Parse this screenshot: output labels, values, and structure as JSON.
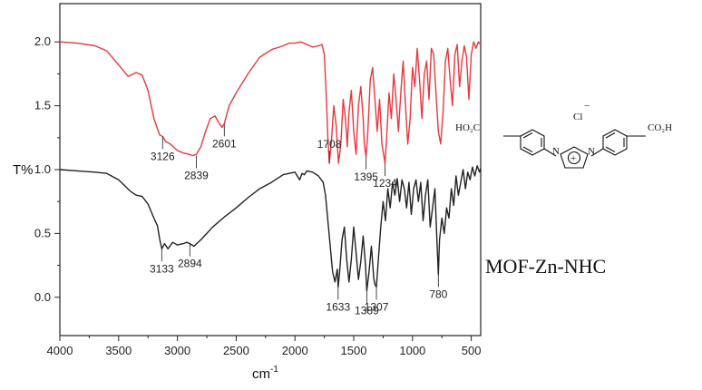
{
  "chart_data": {
    "type": "line",
    "title": "",
    "xlabel": "cm",
    "xlabel_sup": "-1",
    "ylabel": "T%",
    "xlim": [
      4000,
      420
    ],
    "ylim": [
      -0.3,
      2.3
    ],
    "x_ticks": [
      4000,
      3500,
      3000,
      2500,
      2000,
      1500,
      1000,
      500
    ],
    "y_ticks": [
      0.0,
      0.5,
      1.0,
      1.5,
      2.0
    ],
    "y_tick_labels": [
      "0.0",
      "0.5",
      "1.0",
      "1.5",
      "2.0"
    ],
    "grid": false,
    "series": [
      {
        "color": "#e8383d",
        "x": [
          4000,
          3850,
          3700,
          3600,
          3500,
          3420,
          3350,
          3300,
          3250,
          3200,
          3170,
          3150,
          3126,
          3100,
          3060,
          3000,
          2950,
          2900,
          2870,
          2839,
          2800,
          2760,
          2720,
          2680,
          2650,
          2620,
          2601,
          2560,
          2500,
          2400,
          2300,
          2200,
          2100,
          2050,
          2000,
          1950,
          1900,
          1850,
          1800,
          1770,
          1750,
          1735,
          1720,
          1708,
          1690,
          1670,
          1650,
          1630,
          1610,
          1590,
          1570,
          1555,
          1540,
          1520,
          1500,
          1480,
          1460,
          1440,
          1420,
          1410,
          1395,
          1380,
          1360,
          1340,
          1320,
          1300,
          1280,
          1260,
          1234,
          1220,
          1200,
          1180,
          1160,
          1140,
          1120,
          1100,
          1080,
          1060,
          1040,
          1020,
          1000,
          980,
          960,
          940,
          920,
          900,
          880,
          860,
          840,
          820,
          800,
          780,
          760,
          740,
          720,
          700,
          680,
          660,
          640,
          620,
          600,
          580,
          560,
          540,
          520,
          500,
          480,
          460,
          440,
          420
        ],
        "y": [
          2.0,
          1.99,
          1.97,
          1.93,
          1.82,
          1.73,
          1.76,
          1.74,
          1.62,
          1.4,
          1.32,
          1.27,
          1.26,
          1.22,
          1.2,
          1.15,
          1.13,
          1.12,
          1.11,
          1.12,
          1.18,
          1.3,
          1.4,
          1.42,
          1.37,
          1.33,
          1.36,
          1.5,
          1.6,
          1.75,
          1.88,
          1.94,
          1.97,
          1.99,
          1.99,
          2.0,
          1.98,
          1.96,
          1.97,
          1.98,
          1.9,
          1.6,
          1.25,
          1.05,
          1.22,
          1.5,
          1.35,
          1.05,
          1.2,
          1.55,
          1.4,
          1.18,
          1.45,
          1.62,
          1.3,
          1.12,
          1.5,
          1.65,
          1.4,
          1.2,
          1.1,
          1.3,
          1.7,
          1.8,
          1.55,
          1.3,
          1.55,
          1.2,
          1.05,
          1.25,
          1.6,
          1.4,
          1.75,
          1.55,
          1.3,
          1.6,
          1.85,
          1.5,
          1.2,
          1.4,
          1.8,
          1.65,
          1.95,
          1.7,
          1.4,
          1.75,
          1.85,
          1.55,
          1.95,
          1.9,
          1.6,
          1.3,
          1.2,
          1.45,
          1.85,
          1.95,
          1.7,
          1.5,
          1.9,
          1.98,
          1.65,
          1.85,
          1.97,
          1.88,
          1.55,
          1.9,
          2.0,
          1.95,
          2.0,
          1.98
        ]
      },
      {
        "color": "#222222",
        "x": [
          4000,
          3850,
          3700,
          3600,
          3500,
          3400,
          3350,
          3300,
          3250,
          3200,
          3170,
          3150,
          3133,
          3110,
          3080,
          3040,
          3000,
          2950,
          2920,
          2894,
          2860,
          2800,
          2700,
          2600,
          2500,
          2400,
          2300,
          2200,
          2100,
          2000,
          1960,
          1940,
          1920,
          1900,
          1850,
          1800,
          1760,
          1740,
          1720,
          1700,
          1680,
          1660,
          1640,
          1633,
          1620,
          1600,
          1580,
          1560,
          1540,
          1520,
          1500,
          1480,
          1460,
          1440,
          1420,
          1400,
          1389,
          1370,
          1350,
          1330,
          1320,
          1307,
          1290,
          1270,
          1250,
          1230,
          1210,
          1190,
          1170,
          1150,
          1130,
          1110,
          1090,
          1070,
          1050,
          1030,
          1010,
          990,
          970,
          950,
          930,
          910,
          890,
          870,
          850,
          830,
          810,
          790,
          780,
          770,
          750,
          730,
          710,
          690,
          670,
          650,
          630,
          610,
          590,
          570,
          550,
          530,
          510,
          490,
          470,
          450,
          430,
          420
        ],
        "y": [
          1.0,
          0.99,
          0.98,
          0.97,
          0.92,
          0.83,
          0.8,
          0.79,
          0.73,
          0.62,
          0.56,
          0.45,
          0.38,
          0.42,
          0.38,
          0.43,
          0.41,
          0.42,
          0.43,
          0.42,
          0.4,
          0.45,
          0.55,
          0.63,
          0.7,
          0.78,
          0.85,
          0.9,
          0.96,
          0.98,
          0.92,
          0.97,
          0.96,
          0.99,
          0.98,
          0.95,
          0.9,
          0.8,
          0.6,
          0.4,
          0.2,
          0.12,
          0.22,
          0.08,
          0.2,
          0.45,
          0.55,
          0.3,
          0.12,
          0.3,
          0.55,
          0.35,
          0.14,
          0.28,
          0.48,
          0.25,
          0.05,
          0.2,
          0.4,
          0.15,
          0.1,
          0.08,
          0.3,
          0.55,
          0.75,
          0.6,
          0.85,
          0.7,
          0.9,
          0.8,
          0.93,
          0.75,
          0.92,
          0.85,
          0.7,
          0.9,
          0.65,
          0.85,
          0.92,
          0.75,
          0.9,
          0.6,
          0.8,
          0.92,
          0.55,
          0.7,
          0.85,
          0.4,
          0.18,
          0.45,
          0.62,
          0.5,
          0.7,
          0.62,
          0.85,
          0.72,
          0.95,
          0.8,
          0.9,
          1.0,
          0.85,
          0.98,
          0.92,
          1.02,
          0.95,
          1.03,
          0.98,
          1.01
        ]
      }
    ],
    "annotations": [
      {
        "text": "3126",
        "x": 3126,
        "y": 1.26
      },
      {
        "text": "2839",
        "x": 2839,
        "y": 1.11
      },
      {
        "text": "2601",
        "x": 2601,
        "y": 1.36
      },
      {
        "text": "1708",
        "x": 1708,
        "y": 1.05
      },
      {
        "text": "1395",
        "x": 1395,
        "y": 1.1
      },
      {
        "text": "1234",
        "x": 1234,
        "y": 1.05
      },
      {
        "text": "3133",
        "x": 3133,
        "y": 0.38
      },
      {
        "text": "2894",
        "x": 2894,
        "y": 0.42
      },
      {
        "text": "1633",
        "x": 1633,
        "y": 0.08
      },
      {
        "text": "1389",
        "x": 1389,
        "y": 0.05
      },
      {
        "text": "1307",
        "x": 1307,
        "y": 0.08
      },
      {
        "text": "780",
        "x": 780,
        "y": 0.18
      }
    ]
  },
  "structure": {
    "left_group": "HO₂C",
    "right_group": "CO₂H",
    "counter_ion": "Cl",
    "counter_ion_charge": "−",
    "n_left": "N",
    "n_right": "N",
    "charge_symbol": "+"
  },
  "sample_label": "MOF-Zn-NHC"
}
